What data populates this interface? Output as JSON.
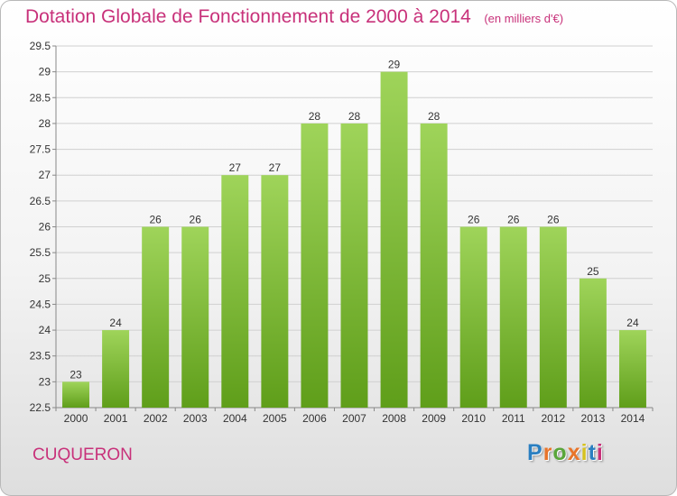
{
  "header": {
    "title": "Dotation Globale de Fonctionnement de 2000 à 2014",
    "subtitle": "(en milliers d'€)"
  },
  "footer": {
    "commune": "CUQUERON",
    "logo_text": "Proxiti",
    "logo_colors": [
      "#2a7fc1",
      "#e8742a",
      "#5aa63a",
      "#e8742a",
      "#d6c21f",
      "#2a7fc1",
      "#c8317a"
    ]
  },
  "colors": {
    "title": "#c8317a",
    "bar_top": "#9fd45a",
    "bar_bottom": "#5f9e1a",
    "grid": "#d0d0d0",
    "axis": "#888888"
  },
  "chart_data": {
    "type": "bar",
    "title": "Dotation Globale de Fonctionnement de 2000 à 2014",
    "subtitle": "(en milliers d'€)",
    "categories": [
      "2000",
      "2001",
      "2002",
      "2003",
      "2004",
      "2005",
      "2006",
      "2007",
      "2008",
      "2009",
      "2010",
      "2011",
      "2012",
      "2013",
      "2014"
    ],
    "values": [
      23,
      24,
      26,
      26,
      27,
      27,
      28,
      28,
      29,
      28,
      26,
      26,
      26,
      25,
      24
    ],
    "data_labels": [
      "23",
      "24",
      "26",
      "26",
      "27",
      "27",
      "28",
      "28",
      "29",
      "28",
      "26",
      "26",
      "26",
      "25",
      "24"
    ],
    "y_ticks": [
      "22.5",
      "23",
      "23.5",
      "24",
      "24.5",
      "25",
      "25.5",
      "26",
      "26.5",
      "27",
      "27.5",
      "28",
      "28.5",
      "29",
      "29.5"
    ],
    "ylim": [
      22.5,
      29.5
    ],
    "xlabel": "",
    "ylabel": "",
    "grid": true,
    "legend": "none"
  }
}
